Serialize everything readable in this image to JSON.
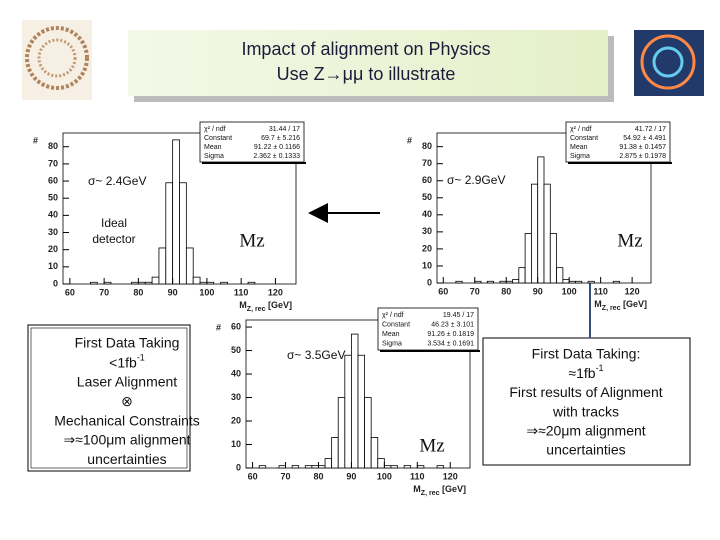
{
  "title": [
    "Impact of alignment on Physics",
    "Use Z→μμ to illustrate"
  ],
  "chart_data": [
    {
      "type": "histogram",
      "color": "#000000",
      "bins": [
        60,
        62,
        64,
        66,
        68,
        70,
        72,
        74,
        76,
        78,
        80,
        82,
        84,
        86,
        88,
        90,
        92,
        94,
        96,
        98,
        100,
        102,
        104,
        106,
        108,
        110,
        112,
        114,
        116,
        118,
        120
      ],
      "values": [
        0,
        0,
        0,
        1,
        0,
        1,
        0,
        0,
        0,
        1,
        1,
        1,
        4,
        21,
        59,
        84,
        59,
        21,
        4,
        1,
        1,
        0,
        1,
        0,
        0,
        0,
        1,
        0,
        0,
        0
      ],
      "xlim": [
        58,
        126
      ],
      "ylim": [
        0,
        88
      ],
      "xticks": [
        60,
        70,
        80,
        90,
        100,
        110,
        120
      ],
      "yticks": [
        0,
        10,
        20,
        30,
        40,
        50,
        60,
        70,
        80
      ],
      "y_label": "#",
      "x_label": {
        "main": "M",
        "sub": "Z, rec",
        "unit": " [GeV]"
      },
      "stats": [
        [
          "χ² / ndf",
          "31.44 / 17"
        ],
        [
          "Constant",
          "69.7 ± 5.216"
        ],
        [
          "Mean",
          "91.22 ± 0.1166"
        ],
        [
          "Sigma",
          "2.362 ± 0.1333"
        ]
      ],
      "annotations": [
        "σ~ 2.4GeV",
        "Ideal",
        "detector",
        "Mz"
      ]
    },
    {
      "type": "histogram",
      "color": "#000000",
      "bins": [
        60,
        62,
        64,
        66,
        68,
        70,
        72,
        74,
        76,
        78,
        80,
        82,
        84,
        86,
        88,
        90,
        92,
        94,
        96,
        98,
        100,
        102,
        104,
        106,
        108,
        110,
        112,
        114,
        116,
        118,
        120
      ],
      "values": [
        0,
        0,
        1,
        0,
        0,
        1,
        0,
        1,
        0,
        1,
        1,
        2,
        9,
        29,
        58,
        74,
        58,
        29,
        9,
        2,
        1,
        1,
        0,
        1,
        0,
        0,
        0,
        1,
        0,
        0
      ],
      "xlim": [
        58,
        126
      ],
      "ylim": [
        0,
        88
      ],
      "xticks": [
        60,
        70,
        80,
        90,
        100,
        110,
        120
      ],
      "yticks": [
        0,
        10,
        20,
        30,
        40,
        50,
        60,
        70,
        80
      ],
      "y_label": "#",
      "x_label": {
        "main": "M",
        "sub": "Z, rec",
        "unit": " [GeV]"
      },
      "stats": [
        [
          "χ² / ndf",
          "41.72 / 17"
        ],
        [
          "Constant",
          "54.92 ± 4.491"
        ],
        [
          "Mean",
          "91.38 ± 0.1457"
        ],
        [
          "Sigma",
          "2.875 ± 0.1978"
        ]
      ],
      "annotations": [
        "σ~ 2.9GeV",
        "Mz"
      ]
    },
    {
      "type": "histogram",
      "color": "#000000",
      "bins": [
        60,
        62,
        64,
        66,
        68,
        70,
        72,
        74,
        76,
        78,
        80,
        82,
        84,
        86,
        88,
        90,
        92,
        94,
        96,
        98,
        100,
        102,
        104,
        106,
        108,
        110,
        112,
        114,
        116,
        118,
        120
      ],
      "values": [
        0,
        1,
        0,
        0,
        1,
        0,
        1,
        0,
        1,
        1,
        1,
        4,
        13,
        30,
        48,
        57,
        48,
        30,
        13,
        4,
        1,
        1,
        0,
        1,
        0,
        1,
        0,
        0,
        1,
        0
      ],
      "xlim": [
        58,
        126
      ],
      "ylim": [
        0,
        63
      ],
      "xticks": [
        60,
        70,
        80,
        90,
        100,
        110,
        120
      ],
      "yticks": [
        0,
        10,
        20,
        30,
        40,
        50,
        60
      ],
      "y_label": "#",
      "x_label": {
        "main": "M",
        "sub": "Z, rec",
        "unit": " [GeV]"
      },
      "stats": [
        [
          "χ² / ndf",
          "19.45 / 17"
        ],
        [
          "Constant",
          "46.23 ± 3.101"
        ],
        [
          "Mean",
          "91.26 ± 0.1819"
        ],
        [
          "Sigma",
          "3.534 ± 0.1691"
        ]
      ],
      "annotations": [
        "σ~ 3.5GeV",
        "Mz"
      ]
    }
  ],
  "left_box": [
    "First Data Taking",
    {
      "text": "<1fb",
      "sup": "-1"
    },
    "Laser Alignment",
    "⊗",
    "Mechanical Constraints",
    "⇒≈100μm alignment",
    "uncertainties"
  ],
  "right_box": [
    "First Data Taking:",
    {
      "text": "≈1fb",
      "sup": "-1"
    },
    "First results of Alignment",
    "with tracks",
    "⇒≈20μm alignment",
    "uncertainties"
  ]
}
